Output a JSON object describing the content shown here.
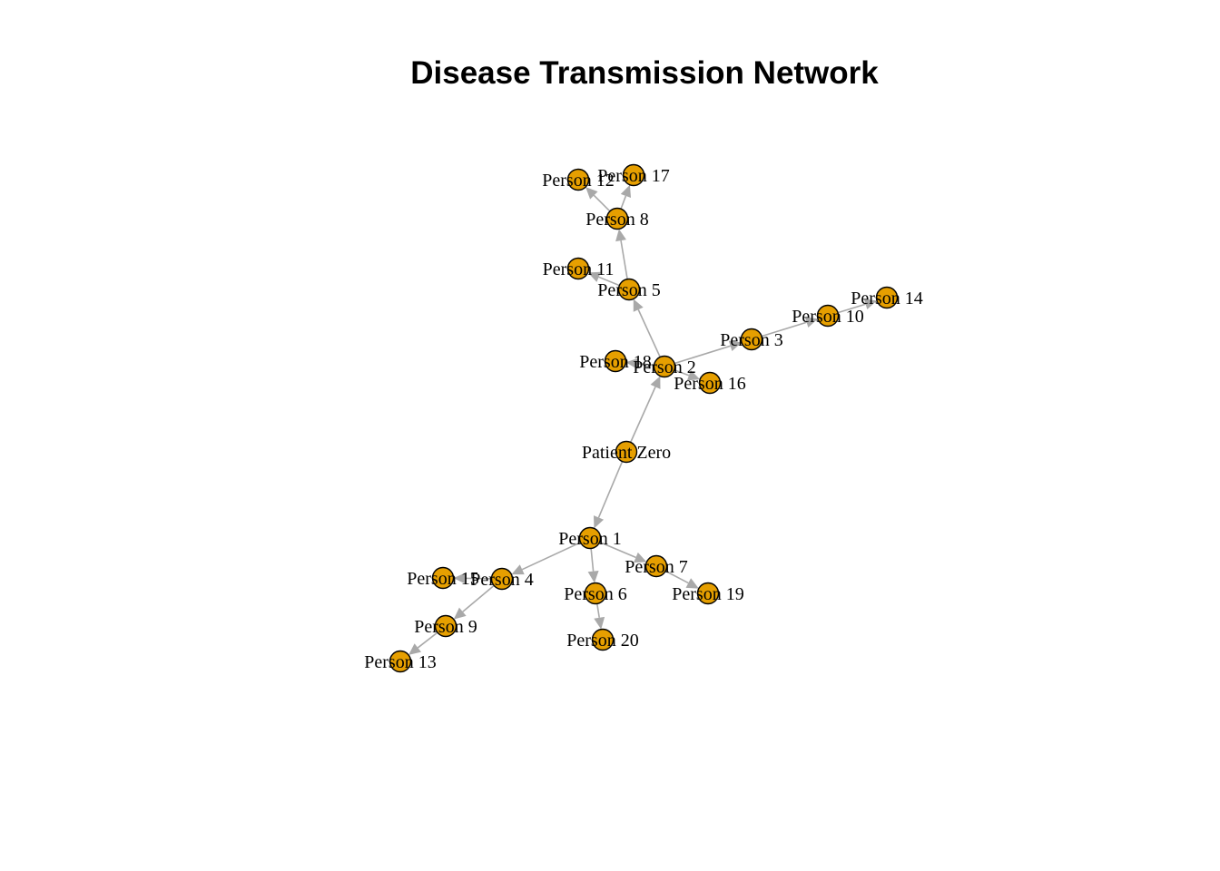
{
  "title": "Disease Transmission Network",
  "colors": {
    "node_fill": "#E69F00",
    "node_stroke": "#000000",
    "edge": "#A9A9A9",
    "background": "#FFFFFF"
  },
  "nodes": [
    {
      "id": "pz",
      "label": "Patient Zero"
    },
    {
      "id": "p1",
      "label": "Person 1"
    },
    {
      "id": "p2",
      "label": "Person 2"
    },
    {
      "id": "p3",
      "label": "Person 3"
    },
    {
      "id": "p4",
      "label": "Person 4"
    },
    {
      "id": "p5",
      "label": "Person 5"
    },
    {
      "id": "p6",
      "label": "Person 6"
    },
    {
      "id": "p7",
      "label": "Person 7"
    },
    {
      "id": "p8",
      "label": "Person 8"
    },
    {
      "id": "p9",
      "label": "Person 9"
    },
    {
      "id": "p10",
      "label": "Person 10"
    },
    {
      "id": "p11",
      "label": "Person 11"
    },
    {
      "id": "p12",
      "label": "Person 12"
    },
    {
      "id": "p13",
      "label": "Person 13"
    },
    {
      "id": "p14",
      "label": "Person 14"
    },
    {
      "id": "p15",
      "label": "Person 15"
    },
    {
      "id": "p16",
      "label": "Person 16"
    },
    {
      "id": "p17",
      "label": "Person 17"
    },
    {
      "id": "p18",
      "label": "Person 18"
    },
    {
      "id": "p19",
      "label": "Person 19"
    },
    {
      "id": "p20",
      "label": "Person 20"
    }
  ],
  "edges": [
    {
      "from": "pz",
      "to": "p1"
    },
    {
      "from": "pz",
      "to": "p2"
    },
    {
      "from": "p2",
      "to": "p3"
    },
    {
      "from": "p2",
      "to": "p5"
    },
    {
      "from": "p2",
      "to": "p16"
    },
    {
      "from": "p2",
      "to": "p18"
    },
    {
      "from": "p3",
      "to": "p10"
    },
    {
      "from": "p10",
      "to": "p14"
    },
    {
      "from": "p5",
      "to": "p8"
    },
    {
      "from": "p5",
      "to": "p11"
    },
    {
      "from": "p8",
      "to": "p12"
    },
    {
      "from": "p8",
      "to": "p17"
    },
    {
      "from": "p1",
      "to": "p4"
    },
    {
      "from": "p1",
      "to": "p6"
    },
    {
      "from": "p1",
      "to": "p7"
    },
    {
      "from": "p4",
      "to": "p9"
    },
    {
      "from": "p4",
      "to": "p15"
    },
    {
      "from": "p9",
      "to": "p13"
    },
    {
      "from": "p6",
      "to": "p20"
    },
    {
      "from": "p7",
      "to": "p19"
    }
  ]
}
